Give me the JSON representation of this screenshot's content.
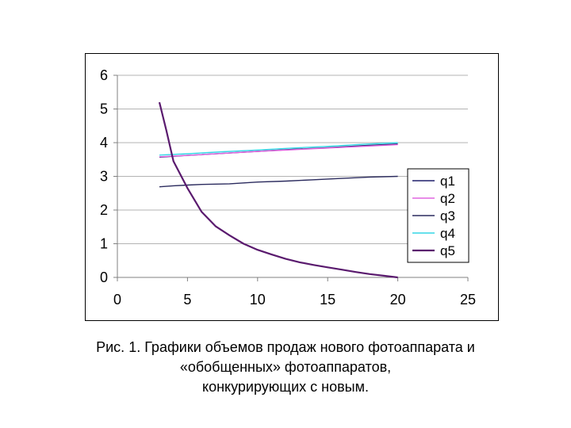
{
  "chart_data": {
    "type": "line",
    "xlim": [
      0,
      25
    ],
    "ylim": [
      0,
      6
    ],
    "x_ticks": [
      "0",
      "5",
      "10",
      "15",
      "20",
      "25"
    ],
    "y_ticks": [
      "0",
      "1",
      "2",
      "3",
      "4",
      "5",
      "6"
    ],
    "grid": "horizontal",
    "legend_position": "right",
    "series": [
      {
        "name": "q1",
        "color": "#1f1f6b",
        "x": [
          3,
          5,
          7.5,
          10,
          12.5,
          15,
          17.5,
          20
        ],
        "y": [
          3.57,
          3.62,
          3.68,
          3.74,
          3.8,
          3.85,
          3.91,
          3.96
        ]
      },
      {
        "name": "q2",
        "color": "#e066e0",
        "x": [
          3,
          5,
          7.5,
          10,
          12.5,
          15,
          17.5,
          20
        ],
        "y": [
          3.58,
          3.62,
          3.68,
          3.74,
          3.79,
          3.84,
          3.89,
          3.94
        ]
      },
      {
        "name": "q3",
        "color": "#2b2b5e",
        "x": [
          3,
          4,
          5,
          6,
          8,
          10,
          12,
          14,
          16,
          18,
          20
        ],
        "y": [
          2.69,
          2.72,
          2.74,
          2.76,
          2.78,
          2.83,
          2.86,
          2.9,
          2.94,
          2.98,
          3.0
        ]
      },
      {
        "name": "q4",
        "color": "#33d6e6",
        "x": [
          3,
          5,
          7.5,
          10,
          12.5,
          15,
          17.5,
          20
        ],
        "y": [
          3.63,
          3.67,
          3.73,
          3.78,
          3.84,
          3.89,
          3.95,
          4.0
        ]
      },
      {
        "name": "q5",
        "color": "#5a1a6e",
        "x": [
          3,
          3.5,
          4,
          5,
          6,
          7,
          8,
          9,
          10,
          11,
          12,
          13,
          14,
          15,
          16,
          17,
          18,
          19,
          20
        ],
        "y": [
          5.2,
          4.35,
          3.45,
          2.65,
          1.95,
          1.52,
          1.25,
          1.0,
          0.82,
          0.68,
          0.55,
          0.45,
          0.37,
          0.3,
          0.23,
          0.16,
          0.1,
          0.05,
          0.0
        ]
      }
    ]
  },
  "caption": {
    "line1": "Рис. 1. Графики объемов продаж нового фотоаппарата и",
    "line2": "«обобщенных» фотоаппаратов,",
    "line3": "конкурирующих с новым."
  }
}
